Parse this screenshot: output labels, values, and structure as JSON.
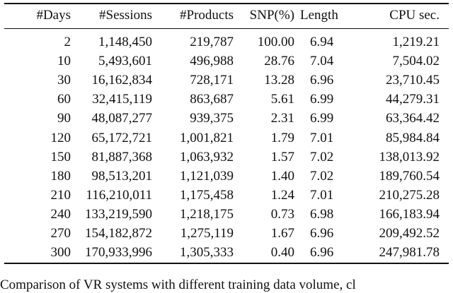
{
  "table": {
    "header": [
      "#Days",
      "#Sessions",
      "#Products",
      "SNP(%)",
      "Length",
      "CPU sec."
    ],
    "rows": [
      [
        "2",
        "1,148,450",
        "219,787",
        "100.00",
        "6.94",
        "1,219.21"
      ],
      [
        "10",
        "5,493,601",
        "496,988",
        "28.76",
        "7.04",
        "7,504.02"
      ],
      [
        "30",
        "16,162,834",
        "728,171",
        "13.28",
        "6.96",
        "23,710.45"
      ],
      [
        "60",
        "32,415,119",
        "863,687",
        "5.61",
        "6.99",
        "44,279.31"
      ],
      [
        "90",
        "48,087,277",
        "939,375",
        "2.31",
        "6.99",
        "63,364.42"
      ],
      [
        "120",
        "65,172,721",
        "1,001,821",
        "1.79",
        "7.01",
        "85,984.84"
      ],
      [
        "150",
        "81,887,368",
        "1,063,932",
        "1.57",
        "7.02",
        "138,013.92"
      ],
      [
        "180",
        "98,513,201",
        "1,121,039",
        "1.40",
        "7.02",
        "189,760.54"
      ],
      [
        "210",
        "116,210,011",
        "1,175,458",
        "1.24",
        "7.01",
        "210,275.28"
      ],
      [
        "240",
        "133,219,590",
        "1,218,175",
        "0.73",
        "6.98",
        "166,183.94"
      ],
      [
        "270",
        "154,182,872",
        "1,275,119",
        "1.67",
        "6.96",
        "209,492.52"
      ],
      [
        "300",
        "170,933,996",
        "1,305,333",
        "0.40",
        "6.96",
        "247,981.78"
      ]
    ]
  },
  "caption": "Comparison of VR systems with different training data volume, cl"
}
